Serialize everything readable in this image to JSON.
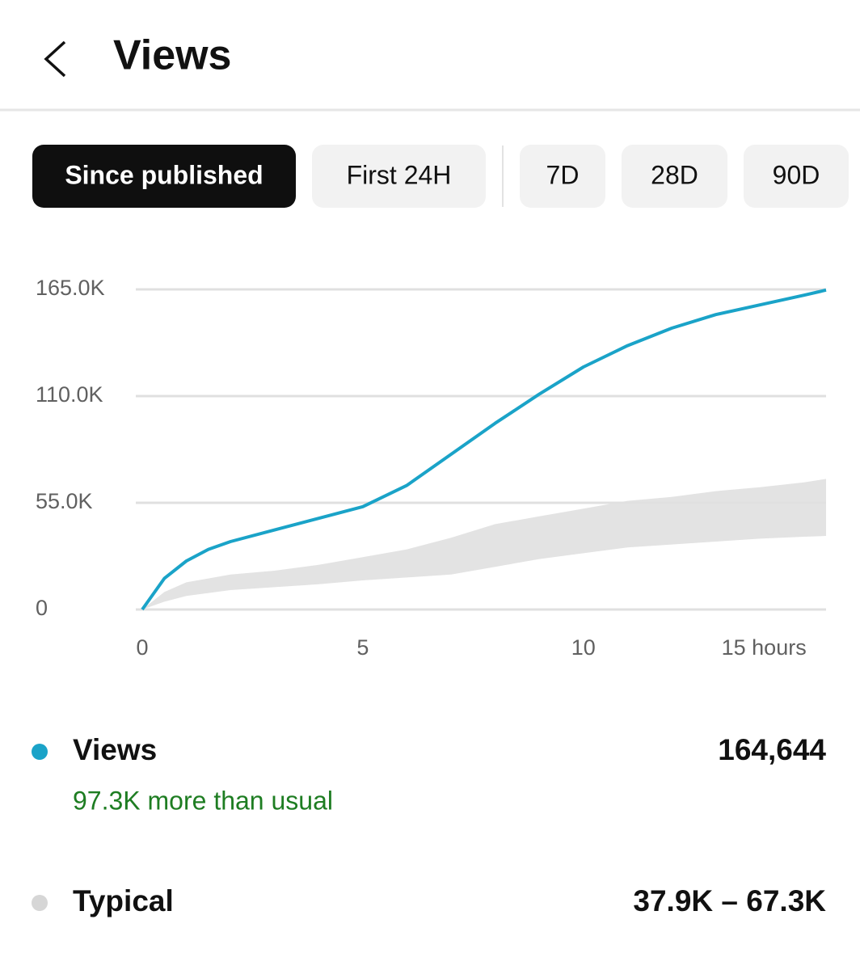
{
  "header": {
    "title": "Views"
  },
  "tabs": [
    "Since published",
    "First 24H",
    "7D",
    "28D",
    "90D"
  ],
  "selected_tab": 0,
  "chart_data": {
    "type": "line",
    "x": [
      0,
      0.5,
      1,
      1.5,
      2,
      3,
      4,
      5,
      6,
      7,
      8,
      9,
      10,
      11,
      12,
      13,
      14,
      15,
      15.5
    ],
    "series": [
      {
        "name": "Views",
        "color": "#1aa3c8",
        "values": [
          0,
          16000,
          25000,
          31000,
          35000,
          41000,
          47000,
          53000,
          64000,
          80000,
          96000,
          111000,
          125000,
          136000,
          145000,
          152000,
          157000,
          162000,
          164644
        ]
      }
    ],
    "band": {
      "name": "Typical",
      "color": "#e3e3e3",
      "lower": [
        0,
        4000,
        7000,
        8500,
        10000,
        11500,
        13000,
        15000,
        16500,
        18000,
        22000,
        26000,
        29000,
        32000,
        33500,
        35000,
        36500,
        37500,
        37900
      ],
      "upper": [
        0,
        9000,
        14000,
        16000,
        18000,
        20000,
        23000,
        27000,
        31000,
        37000,
        44000,
        48000,
        52000,
        56000,
        58000,
        61000,
        63000,
        65500,
        67300
      ]
    },
    "xlim": [
      0,
      15.5
    ],
    "xticks": [
      0,
      5,
      10,
      {
        "value": 15,
        "label": "15 hours"
      }
    ],
    "ylim": [
      0,
      165000
    ],
    "yticks": [
      0,
      {
        "value": 55000,
        "label": "55.0K"
      },
      {
        "value": 110000,
        "label": "110.0K"
      },
      {
        "value": 165000,
        "label": "165.0K"
      }
    ],
    "grid": true
  },
  "summary": [
    {
      "label": "Views",
      "value": "164,644",
      "note": "97.3K more than usual"
    },
    {
      "label": "Typical",
      "value": "37.9K – 67.3K"
    }
  ]
}
